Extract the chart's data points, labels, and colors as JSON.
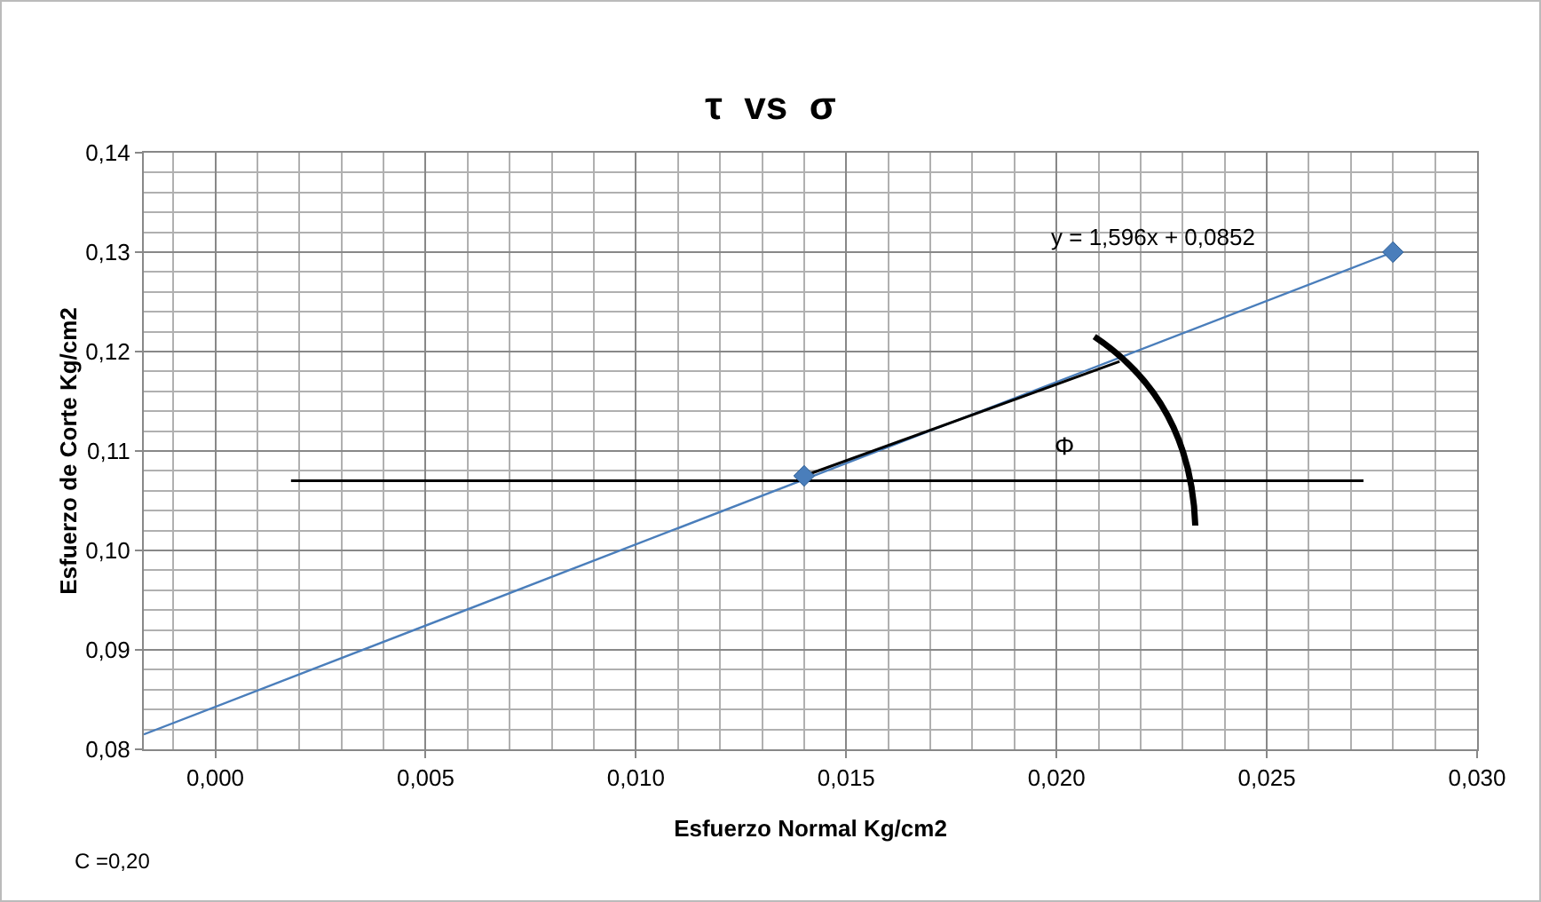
{
  "chart_data": {
    "type": "scatter",
    "title": "τ  vs  σ",
    "xlabel": "Esfuerzo Normal Kg/cm2",
    "ylabel": "Esfuerzo de Corte Kg/cm2",
    "xlim": [
      -0.0017,
      0.03
    ],
    "ylim": [
      0.08,
      0.14
    ],
    "xticks": [
      {
        "value": 0,
        "label": "0,000"
      },
      {
        "value": 0.005,
        "label": "0,005"
      },
      {
        "value": 0.01,
        "label": "0,010"
      },
      {
        "value": 0.015,
        "label": "0,015"
      },
      {
        "value": 0.02,
        "label": "0,020"
      },
      {
        "value": 0.025,
        "label": "0,025"
      },
      {
        "value": 0.03,
        "label": "0,030"
      }
    ],
    "yticks": [
      {
        "value": 0.08,
        "label": "0,08"
      },
      {
        "value": 0.09,
        "label": "0,09"
      },
      {
        "value": 0.1,
        "label": "0,10"
      },
      {
        "value": 0.11,
        "label": "0,11"
      },
      {
        "value": 0.12,
        "label": "0,12"
      },
      {
        "value": 0.13,
        "label": "0,13"
      },
      {
        "value": 0.14,
        "label": "0,14"
      }
    ],
    "grid": true,
    "series": [
      {
        "type": "line",
        "color": "#4a7ebb",
        "marker": "none",
        "x": [
          -0.0017,
          0.028
        ],
        "values": [
          0.0815,
          0.13
        ]
      },
      {
        "type": "line",
        "color": "#000000",
        "marker": "none",
        "x": [
          0.0018,
          0.0273
        ],
        "values": [
          0.107,
          0.107
        ]
      },
      {
        "type": "line",
        "color": "#000000",
        "marker": "none",
        "x": [
          0.014,
          0.0215
        ],
        "values": [
          0.1075,
          0.119
        ]
      },
      {
        "color": "#4a7ebb",
        "marker": "diamond",
        "x": [
          0.014,
          0.028
        ],
        "values": [
          0.1075,
          0.13
        ]
      }
    ],
    "annotations": [
      "y = 1,596x + 0,0852",
      "Φ",
      "C =0,20"
    ]
  }
}
